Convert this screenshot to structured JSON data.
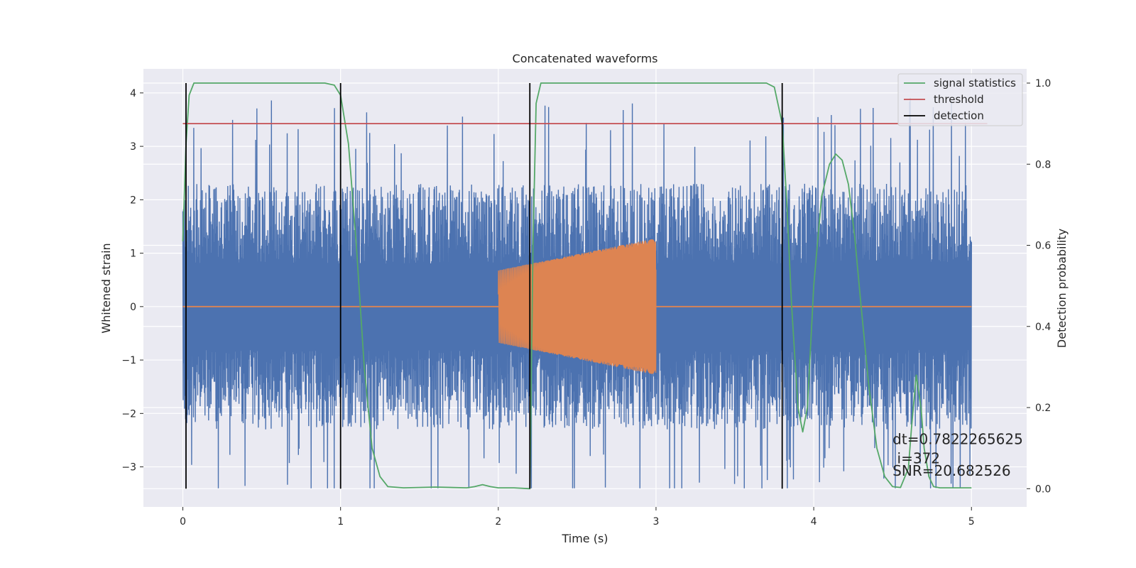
{
  "chart_data": {
    "type": "line",
    "title": "Concatenated waveforms",
    "xlabel": "Time (s)",
    "ylabel_left": "Whitened strain",
    "ylabel_right": "Detection probability",
    "xlim": [
      -0.25,
      5.35
    ],
    "ylim_left": [
      -3.75,
      4.45
    ],
    "ylim_right": [
      -0.045,
      1.035
    ],
    "x_ticks": [
      0,
      1,
      2,
      3,
      4,
      5
    ],
    "x_tick_labels": [
      "0",
      "1",
      "2",
      "3",
      "4",
      "5"
    ],
    "y_left_ticks": [
      -3,
      -2,
      -1,
      0,
      1,
      2,
      3,
      4
    ],
    "y_left_tick_labels": [
      "−3",
      "−2",
      "−1",
      "0",
      "1",
      "2",
      "3",
      "4"
    ],
    "y_right_ticks": [
      0.0,
      0.2,
      0.4,
      0.6,
      0.8,
      1.0
    ],
    "y_right_tick_labels": [
      "0.0",
      "0.2",
      "0.4",
      "0.6",
      "0.8",
      "1.0"
    ],
    "grid": true,
    "legend_position": "top-right",
    "noise_series": {
      "name": "whitened strain (noise)",
      "x_start": 0,
      "x_end": 5,
      "color": "#4c72b0",
      "typical_peak": 2.3,
      "min_value": -3.4,
      "max_value": 4.1
    },
    "injection_series": {
      "name": "injected waveform",
      "x_start": 2.0,
      "x_end": 3.0,
      "amplitude_start": 0.68,
      "amplitude_end": 1.28,
      "color": "#dd8452"
    },
    "series": [
      {
        "name": "signal statistics",
        "axis": "right",
        "color": "#55a868",
        "x": [
          0.0,
          0.02,
          0.04,
          0.07,
          0.1,
          0.5,
          0.9,
          0.96,
          1.0,
          1.05,
          1.1,
          1.15,
          1.2,
          1.25,
          1.3,
          1.4,
          1.6,
          1.8,
          1.85,
          1.9,
          1.95,
          2.0,
          2.1,
          2.2,
          2.22,
          2.24,
          2.27,
          2.3,
          2.5,
          3.0,
          3.5,
          3.7,
          3.75,
          3.8,
          3.83,
          3.86,
          3.9,
          3.93,
          3.96,
          4.0,
          4.05,
          4.1,
          4.14,
          4.18,
          4.22,
          4.26,
          4.3,
          4.35,
          4.4,
          4.45,
          4.5,
          4.55,
          4.6,
          4.62,
          4.65,
          4.68,
          4.7,
          4.73,
          4.76,
          4.8,
          4.9,
          5.0
        ],
        "values": [
          0.61,
          0.85,
          0.97,
          1.0,
          1.0,
          1.0,
          1.0,
          0.995,
          0.97,
          0.85,
          0.6,
          0.3,
          0.1,
          0.03,
          0.005,
          0.002,
          0.004,
          0.002,
          0.005,
          0.01,
          0.005,
          0.002,
          0.002,
          0.0,
          0.6,
          0.95,
          1.0,
          1.0,
          1.0,
          1.0,
          1.0,
          1.0,
          0.99,
          0.9,
          0.7,
          0.45,
          0.2,
          0.14,
          0.2,
          0.5,
          0.72,
          0.8,
          0.825,
          0.81,
          0.75,
          0.62,
          0.45,
          0.25,
          0.1,
          0.03,
          0.005,
          0.003,
          0.05,
          0.15,
          0.28,
          0.2,
          0.1,
          0.03,
          0.005,
          0.002,
          0.002,
          0.002
        ]
      },
      {
        "name": "threshold",
        "axis": "right",
        "color": "#c44e52",
        "x": [
          0.0,
          5.1
        ],
        "values": [
          0.9,
          0.9
        ]
      }
    ],
    "detections": {
      "name": "detection",
      "color": "#000000",
      "times": [
        0.02,
        1.0,
        2.2,
        3.8
      ]
    },
    "legend": [
      {
        "label": "signal statistics",
        "color": "#55a868"
      },
      {
        "label": "threshold",
        "color": "#c44e52"
      },
      {
        "label": "detection",
        "color": "#000000"
      }
    ],
    "annotations": [
      {
        "text": "dt=0.7822265625",
        "x": 4.5,
        "y_right": 0.11
      },
      {
        "text": " i=372",
        "x": 4.5,
        "y_right": 0.063
      },
      {
        "text": "SNR=20.682526",
        "x": 4.5,
        "y_right": 0.032
      }
    ]
  }
}
